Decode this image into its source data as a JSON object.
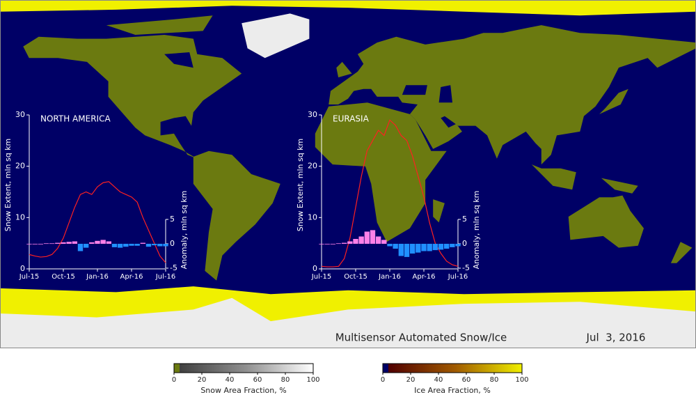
{
  "map": {
    "title": "Multisensor Automated Snow/Ice",
    "date": "Jul  3, 2016"
  },
  "chart_data": [
    {
      "type": "line",
      "title": "NORTH AMERICA",
      "x": [
        0,
        0.5,
        1,
        1.5,
        2,
        2.5,
        3,
        3.5,
        4,
        4.5,
        5,
        5.5,
        6,
        6.5,
        7,
        7.5,
        8,
        8.5,
        9,
        9.5,
        10,
        10.5,
        11,
        11.5,
        12
      ],
      "xlim": [
        0,
        12
      ],
      "xticks": [
        {
          "value": 0,
          "label": "Jul-15"
        },
        {
          "value": 3,
          "label": "Oct-15"
        },
        {
          "value": 6,
          "label": "Jan-16"
        },
        {
          "value": 9,
          "label": "Apr-16"
        },
        {
          "value": 12,
          "label": "Jul-16"
        }
      ],
      "ylim": [
        0,
        30
      ],
      "yticks": [
        0,
        10,
        20,
        30
      ],
      "ylabel": "Snow Extent, mln sq km",
      "y2lim": [
        -5,
        5
      ],
      "y2ticks": [
        -5,
        0,
        5
      ],
      "y2label": "Anomaly, mln sq km",
      "series": [
        {
          "color": "#ff2020",
          "values": [
            2.8,
            2.5,
            2.3,
            2.4,
            2.8,
            4,
            6,
            9,
            12,
            14.5,
            15,
            14.5,
            16,
            16.8,
            17,
            16,
            15,
            14.5,
            14,
            13,
            10,
            7.5,
            5,
            2.5,
            1.2
          ]
        },
        {
          "axis": "y2",
          "positive_color": "#ff80e8",
          "negative_color": "#2090ff",
          "values": [
            0,
            0,
            0,
            0.1,
            0.1,
            0.2,
            0.3,
            0.4,
            0.5,
            -1.5,
            -0.8,
            0.3,
            0.6,
            0.8,
            0.5,
            -0.7,
            -0.8,
            -0.6,
            -0.4,
            -0.4,
            0.2,
            -0.6,
            -0.3,
            -0.5,
            -0.5
          ]
        }
      ]
    },
    {
      "type": "line",
      "title": "EURASIA",
      "x": [
        0,
        0.5,
        1,
        1.5,
        2,
        2.5,
        3,
        3.5,
        4,
        4.5,
        5,
        5.5,
        6,
        6.5,
        7,
        7.5,
        8,
        8.5,
        9,
        9.5,
        10,
        10.5,
        11,
        11.5,
        12
      ],
      "xlim": [
        0,
        12
      ],
      "xticks": [
        {
          "value": 0,
          "label": "Jul-15"
        },
        {
          "value": 3,
          "label": "Oct-15"
        },
        {
          "value": 6,
          "label": "Jan-16"
        },
        {
          "value": 9,
          "label": "Apr-16"
        },
        {
          "value": 12,
          "label": "Jul-16"
        }
      ],
      "ylim": [
        0,
        30
      ],
      "yticks": [
        0,
        10,
        20,
        30
      ],
      "ylabel": "Snow Extent, mln sq km",
      "y2lim": [
        -5,
        5
      ],
      "y2ticks": [
        -5,
        0,
        5
      ],
      "y2label": "Anomaly, mln sq km",
      "series": [
        {
          "color": "#ff2020",
          "values": [
            0.5,
            0.4,
            0.4,
            0.5,
            2,
            6,
            12,
            18,
            23,
            25,
            27,
            26,
            29,
            28,
            26,
            25,
            22,
            18,
            14,
            9,
            5,
            3,
            1.5,
            0.8,
            0.5
          ]
        },
        {
          "axis": "y2",
          "positive_color": "#ff80e8",
          "negative_color": "#2090ff",
          "values": [
            0,
            0,
            0,
            0.1,
            0.2,
            0.5,
            1,
            1.5,
            2.5,
            2.8,
            1.5,
            0.8,
            -0.5,
            -1,
            -2.5,
            -2.7,
            -2,
            -1.8,
            -1.5,
            -1.5,
            -1.3,
            -1.2,
            -1,
            -0.7,
            -0.5
          ]
        }
      ]
    }
  ],
  "legends": [
    {
      "title": "Snow Area Fraction, %",
      "lim": [
        0,
        100
      ],
      "ticks": [
        0,
        20,
        40,
        60,
        80,
        100
      ],
      "zero_color": "#6b7a10",
      "colors": [
        "#404040",
        "#909090",
        "#ffffff"
      ]
    },
    {
      "title": "Ice Area Fraction, %",
      "lim": [
        0,
        100
      ],
      "ticks": [
        0,
        20,
        40,
        60,
        80,
        100
      ],
      "zero_color": "#000066",
      "colors": [
        "#500000",
        "#a05a00",
        "#f0f000"
      ]
    }
  ]
}
